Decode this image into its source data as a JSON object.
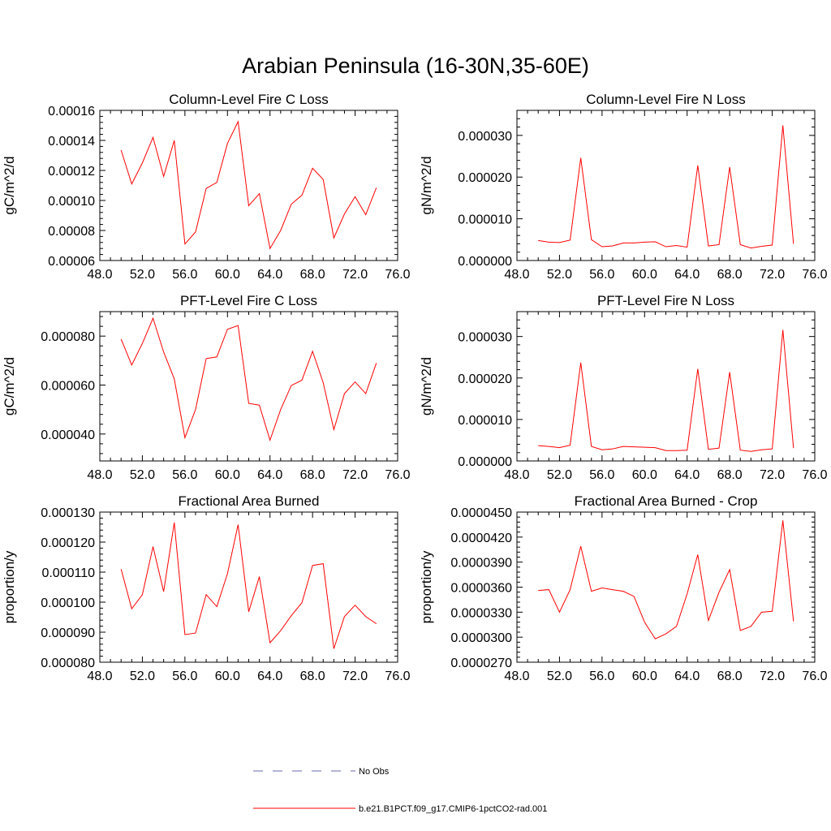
{
  "title": "Arabian Peninsula (16-30N,35-60E)",
  "colors": {
    "model_line": "#ff0000",
    "obs_line": "#6a6ab0",
    "axis": "#000000",
    "background": "#ffffff"
  },
  "legend": {
    "entries": [
      {
        "label": "No Obs",
        "style": "dashed",
        "color": "#6a6ab0"
      },
      {
        "label": "b.e21.B1PCT.f09_g17.CMIP6-1pctCO2-rad.001",
        "style": "solid",
        "color": "#ff0000"
      }
    ]
  },
  "chart_data": [
    {
      "type": "line",
      "title": "Column-Level Fire C Loss",
      "ylabel": "gC/m^2/d",
      "xlim": [
        48,
        76
      ],
      "ylim": [
        6e-05,
        0.00016
      ],
      "xticks": [
        "48.0",
        "52.0",
        "56.0",
        "60.0",
        "64.0",
        "68.0",
        "72.0",
        "76.0"
      ],
      "yticks": [
        "0.00006",
        "0.00008",
        "0.00010",
        "0.00012",
        "0.00014",
        "0.00016"
      ],
      "grid": false,
      "series": [
        {
          "x": [
            50,
            51,
            52,
            53,
            54,
            55,
            56,
            57,
            58,
            59,
            60,
            61,
            62,
            63,
            64,
            65,
            66,
            67,
            68,
            69,
            70,
            71,
            72,
            73,
            74
          ],
          "y": [
            0.0001335,
            0.000111,
            0.000125,
            0.000142,
            0.000116,
            0.00014,
            7.1e-05,
            7.9e-05,
            0.000108,
            0.000112,
            0.000138,
            0.0001525,
            9.65e-05,
            0.0001045,
            6.8e-05,
            8e-05,
            9.75e-05,
            0.0001035,
            0.0001215,
            0.000114,
            7.5e-05,
            9.1e-05,
            0.0001025,
            9.05e-05,
            0.0001085
          ]
        }
      ]
    },
    {
      "type": "line",
      "title": "Column-Level Fire N Loss",
      "ylabel": "gN/m^2/d",
      "xlim": [
        48,
        76
      ],
      "ylim": [
        0.0,
        3.6e-05
      ],
      "xticks": [
        "48.0",
        "52.0",
        "56.0",
        "60.0",
        "64.0",
        "68.0",
        "72.0",
        "76.0"
      ],
      "yticks": [
        "0.000000",
        "0.000010",
        "0.000020",
        "0.000030"
      ],
      "grid": false,
      "series": [
        {
          "x": [
            50,
            51,
            52,
            53,
            54,
            55,
            56,
            57,
            58,
            59,
            60,
            61,
            62,
            63,
            64,
            65,
            66,
            67,
            68,
            69,
            70,
            71,
            72,
            73,
            74
          ],
          "y": [
            4.8e-06,
            4.4e-06,
            4.3e-06,
            4.9e-06,
            2.46e-05,
            5e-06,
            3.3e-06,
            3.5e-06,
            4.2e-06,
            4.2e-06,
            4.4e-06,
            4.5e-06,
            3.3e-06,
            3.6e-06,
            3.2e-06,
            2.28e-05,
            3.5e-06,
            3.8e-06,
            2.24e-05,
            3.8e-06,
            3e-06,
            3.4e-06,
            3.7e-06,
            3.24e-05,
            4e-06
          ]
        }
      ]
    },
    {
      "type": "line",
      "title": "PFT-Level Fire C Loss",
      "ylabel": "gC/m^2/d",
      "xlim": [
        48,
        76
      ],
      "ylim": [
        2.9e-05,
        9e-05
      ],
      "xticks": [
        "48.0",
        "52.0",
        "56.0",
        "60.0",
        "64.0",
        "68.0",
        "72.0",
        "76.0"
      ],
      "yticks": [
        "0.000040",
        "0.000060",
        "0.000080"
      ],
      "grid": false,
      "series": [
        {
          "x": [
            50,
            51,
            52,
            53,
            54,
            55,
            56,
            57,
            58,
            59,
            60,
            61,
            62,
            63,
            64,
            65,
            66,
            67,
            68,
            69,
            70,
            71,
            72,
            73,
            74
          ],
          "y": [
            7.88e-05,
            6.82e-05,
            7.7e-05,
            8.73e-05,
            7.35e-05,
            6.25e-05,
            3.85e-05,
            5e-05,
            7.08e-05,
            7.15e-05,
            8.28e-05,
            8.43e-05,
            5.25e-05,
            5.18e-05,
            3.75e-05,
            5e-05,
            5.98e-05,
            6.2e-05,
            7.38e-05,
            6.1e-05,
            4.18e-05,
            5.65e-05,
            6.13e-05,
            5.65e-05,
            6.9e-05
          ]
        }
      ]
    },
    {
      "type": "line",
      "title": "PFT-Level Fire N Loss",
      "ylabel": "gN/m^2/d",
      "xlim": [
        48,
        76
      ],
      "ylim": [
        0.0,
        3.6e-05
      ],
      "xticks": [
        "48.0",
        "52.0",
        "56.0",
        "60.0",
        "64.0",
        "68.0",
        "72.0",
        "76.0"
      ],
      "yticks": [
        "0.000000",
        "0.000010",
        "0.000020",
        "0.000030"
      ],
      "grid": false,
      "series": [
        {
          "x": [
            50,
            51,
            52,
            53,
            54,
            55,
            56,
            57,
            58,
            59,
            60,
            61,
            62,
            63,
            64,
            65,
            66,
            67,
            68,
            69,
            70,
            71,
            72,
            73,
            74
          ],
          "y": [
            3.7e-06,
            3.5e-06,
            3.2e-06,
            3.8e-06,
            2.37e-05,
            3.5e-06,
            2.7e-06,
            2.9e-06,
            3.5e-06,
            3.4e-06,
            3.3e-06,
            3.2e-06,
            2.5e-06,
            2.5e-06,
            2.6e-06,
            2.22e-05,
            2.8e-06,
            3.1e-06,
            2.14e-05,
            2.6e-06,
            2.3e-06,
            2.7e-06,
            2.9e-06,
            3.16e-05,
            3.1e-06
          ]
        }
      ]
    },
    {
      "type": "line",
      "title": "Fractional Area Burned",
      "ylabel": "proportion/y",
      "xlim": [
        48,
        76
      ],
      "ylim": [
        8e-05,
        0.00013
      ],
      "xticks": [
        "48.0",
        "52.0",
        "56.0",
        "60.0",
        "64.0",
        "68.0",
        "72.0",
        "76.0"
      ],
      "yticks": [
        "0.000080",
        "0.000090",
        "0.000100",
        "0.000110",
        "0.000120",
        "0.000130"
      ],
      "grid": false,
      "series": [
        {
          "x": [
            50,
            51,
            52,
            53,
            54,
            55,
            56,
            57,
            58,
            59,
            60,
            61,
            62,
            63,
            64,
            65,
            66,
            67,
            68,
            69,
            70,
            71,
            72,
            73,
            74
          ],
          "y": [
            0.000111,
            9.78e-05,
            0.0001025,
            0.0001185,
            0.0001035,
            0.0001265,
            8.92e-05,
            8.97e-05,
            0.0001025,
            9.85e-05,
            0.0001095,
            0.0001258,
            9.68e-05,
            0.0001085,
            8.65e-05,
            9.05e-05,
            9.55e-05,
            9.98e-05,
            0.0001122,
            0.0001128,
            8.45e-05,
            9.52e-05,
            9.9e-05,
            9.52e-05,
            9.28e-05
          ]
        }
      ]
    },
    {
      "type": "line",
      "title": "Fractional Area Burned - Crop",
      "ylabel": "proportion/y",
      "xlim": [
        48,
        76
      ],
      "ylim": [
        2.7e-05,
        4.5e-05
      ],
      "xticks": [
        "48.0",
        "52.0",
        "56.0",
        "60.0",
        "64.0",
        "68.0",
        "72.0",
        "76.0"
      ],
      "yticks": [
        "0.0000270",
        "0.0000300",
        "0.0000330",
        "0.0000360",
        "0.0000390",
        "0.0000420",
        "0.0000450"
      ],
      "grid": false,
      "series": [
        {
          "x": [
            50,
            51,
            52,
            53,
            54,
            55,
            56,
            57,
            58,
            59,
            60,
            61,
            62,
            63,
            64,
            65,
            66,
            67,
            68,
            69,
            70,
            71,
            72,
            73,
            74
          ],
          "y": [
            3.56e-05,
            3.57e-05,
            3.3e-05,
            3.57e-05,
            4.09e-05,
            3.55e-05,
            3.59e-05,
            3.57e-05,
            3.55e-05,
            3.49e-05,
            3.18e-05,
            2.98e-05,
            3.04e-05,
            3.13e-05,
            3.52e-05,
            3.99e-05,
            3.2e-05,
            3.54e-05,
            3.81e-05,
            3.08e-05,
            3.13e-05,
            3.3e-05,
            3.31e-05,
            4.4e-05,
            3.19e-05
          ]
        }
      ]
    }
  ]
}
